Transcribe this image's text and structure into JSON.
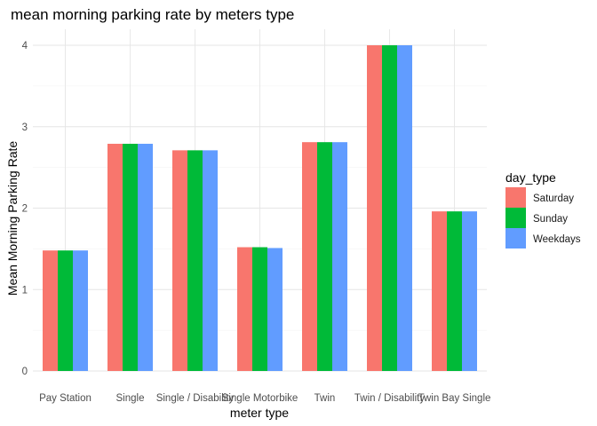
{
  "chart_data": {
    "type": "bar",
    "title": "mean morning parking rate by meters type",
    "xlabel": "meter type",
    "ylabel": "Mean Morning Parking Rate",
    "categories": [
      "Pay Station",
      "Single",
      "Single / Disability",
      "Single Motorbike",
      "Twin",
      "Twin / Disability",
      "Twin Bay Single"
    ],
    "series": [
      {
        "name": "Saturday",
        "color": "#F8766D",
        "values": [
          1.48,
          2.79,
          2.71,
          1.52,
          2.81,
          4.0,
          1.96
        ]
      },
      {
        "name": "Sunday",
        "color": "#00BA38",
        "values": [
          1.48,
          2.79,
          2.71,
          1.52,
          2.81,
          4.0,
          1.96
        ]
      },
      {
        "name": "Weekdays",
        "color": "#619CFF",
        "values": [
          1.48,
          2.79,
          2.71,
          1.51,
          2.81,
          4.0,
          1.96
        ]
      }
    ],
    "ylim": [
      0,
      4.2
    ],
    "yticks": [
      0,
      1,
      2,
      3,
      4
    ],
    "grid": true,
    "legend": {
      "title": "day_type",
      "position": "right"
    }
  }
}
